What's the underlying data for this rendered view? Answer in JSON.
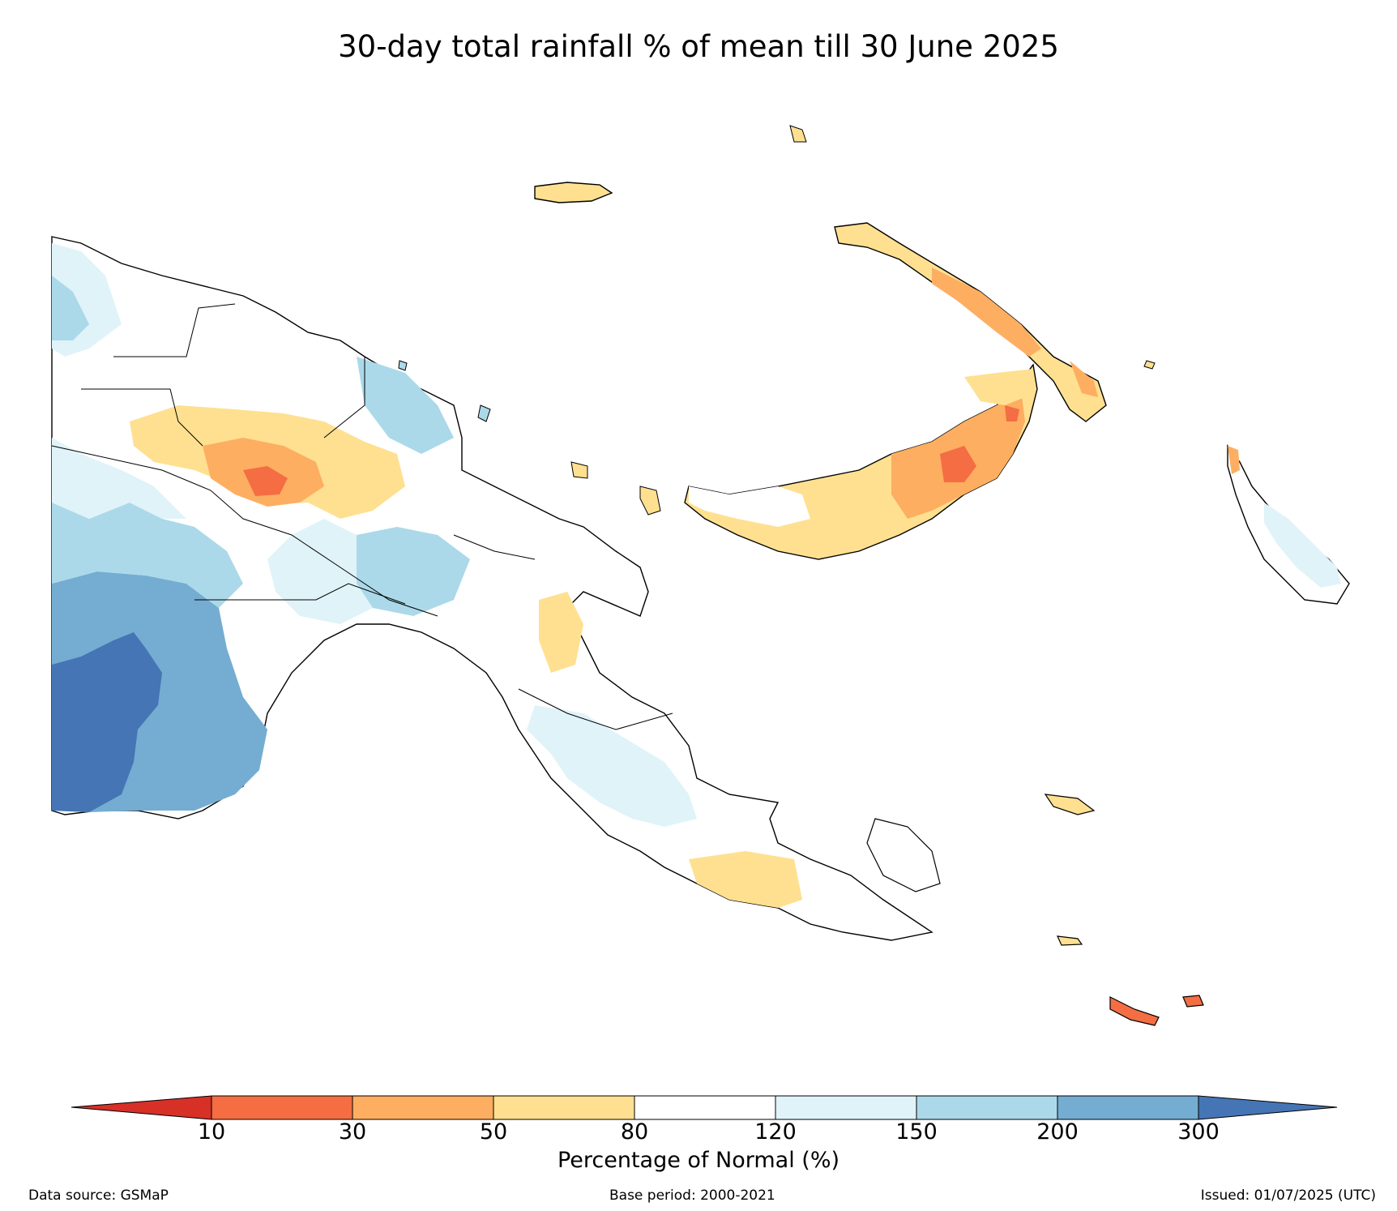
{
  "title": "30-day total rainfall % of mean till 30 June 2025",
  "colorbar": {
    "label": "Percentage of Normal (%)",
    "ticks": [
      "10",
      "30",
      "50",
      "80",
      "120",
      "150",
      "200",
      "300"
    ],
    "bins": [
      {
        "range": "<10",
        "color": "#d73027"
      },
      {
        "range": "10-30",
        "color": "#f46d43"
      },
      {
        "range": "30-50",
        "color": "#fdae61"
      },
      {
        "range": "50-80",
        "color": "#fee090"
      },
      {
        "range": "80-120",
        "color": "#ffffff"
      },
      {
        "range": "120-150",
        "color": "#e0f3f8"
      },
      {
        "range": "150-200",
        "color": "#abd9e9"
      },
      {
        "range": "200-300",
        "color": "#74add1"
      },
      {
        "range": ">300",
        "color": "#4575b4"
      }
    ]
  },
  "footer": {
    "source": "Data source: GSMaP",
    "base_period": "Base period: 2000-2021",
    "issued": "Issued: 01/07/2025 (UTC)"
  }
}
